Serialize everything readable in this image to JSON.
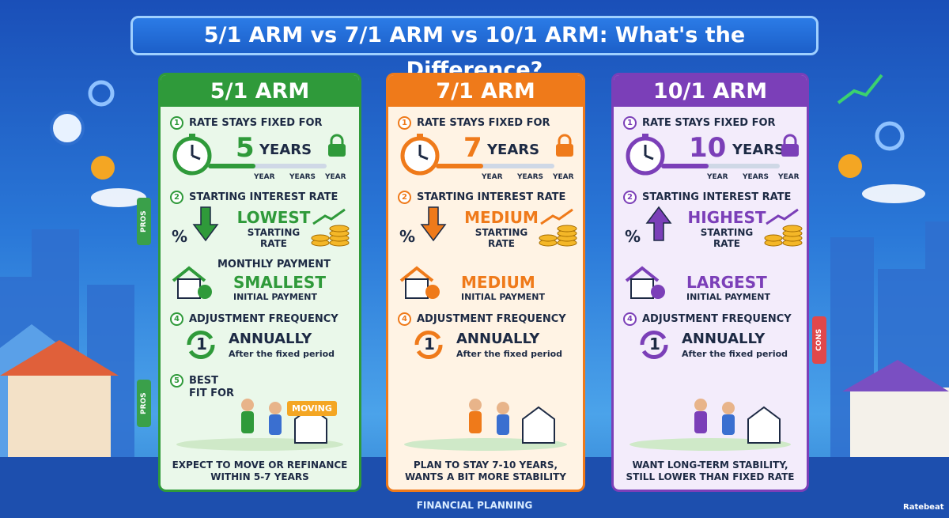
{
  "title": "5/1 ARM vs 7/1 ARM vs 10/1 ARM: What's the Difference?",
  "side_labels": {
    "pros_top": "PROS",
    "pros_bottom": "PROS",
    "cons": "CONS"
  },
  "columns": [
    {
      "name": "5/1 ARM",
      "color": "#2f9a3a",
      "tint": "#eaf8ea",
      "fixed": {
        "step": "1",
        "label": "RATE STAYS FIXED FOR",
        "number": "5",
        "unit": "YEARS",
        "scale": [
          "YEAR",
          "YEARS",
          "YEAR"
        ]
      },
      "rate": {
        "step": "2",
        "label": "STARTING INTEREST RATE",
        "symbol": "%",
        "level": "LOWEST",
        "caption": "STARTING RATE",
        "direction": "down"
      },
      "payment": {
        "label": "MONTHLY PAYMENT",
        "level": "SMALLEST",
        "caption": "INITIAL PAYMENT"
      },
      "adjust": {
        "step": "4",
        "label": "ADJUSTMENT FREQUENCY",
        "icon": "1",
        "level": "ANNUALLY",
        "caption": "After the fixed period"
      },
      "fit": {
        "step": "5",
        "label": "BEST FIT FOR",
        "sign": "MOVING",
        "summary": "EXPECT TO MOVE OR REFINANCE WITHIN 5-7 YEARS"
      }
    },
    {
      "name": "7/1 ARM",
      "color": "#ef7a1a",
      "tint": "#fff3e4",
      "fixed": {
        "step": "1",
        "label": "RATE STAYS FIXED FOR",
        "number": "7",
        "unit": "YEARS",
        "scale": [
          "YEAR",
          "YEARS",
          "YEAR"
        ]
      },
      "rate": {
        "step": "2",
        "label": "STARTING INTEREST RATE",
        "symbol": "%",
        "level": "MEDIUM",
        "caption": "STARTING RATE",
        "direction": "down"
      },
      "payment": {
        "level": "MEDIUM",
        "caption": "INITIAL PAYMENT"
      },
      "adjust": {
        "step": "4",
        "label": "ADJUSTMENT FREQUENCY",
        "icon": "1",
        "level": "ANNUALLY",
        "caption": "After the fixed period"
      },
      "fit": {
        "summary": "PLAN TO STAY 7-10 YEARS, WANTS A BIT MORE STABILITY"
      }
    },
    {
      "name": "10/1 ARM",
      "color": "#7b3fb8",
      "tint": "#f3ecfb",
      "fixed": {
        "step": "1",
        "label": "RATE STAYS FIXED FOR",
        "number": "10",
        "unit": "YEARS",
        "scale": [
          "YEAR",
          "YEARS",
          "YEAR"
        ]
      },
      "rate": {
        "step": "2",
        "label": "STARTING INTEREST RATE",
        "symbol": "%",
        "level": "HIGHEST",
        "caption": "STARTING RATE",
        "direction": "up"
      },
      "payment": {
        "level": "LARGEST",
        "caption": "INITIAL PAYMENT"
      },
      "adjust": {
        "step": "4",
        "label": "ADJUSTMENT FREQUENCY",
        "icon": "1",
        "level": "ANNUALLY",
        "caption": "After the fixed period"
      },
      "fit": {
        "summary": "WANT LONG-TERM STABILITY, STILL LOWER THAN FIXED RATE"
      }
    }
  ],
  "footer": "FINANCIAL PLANNING",
  "brand": "Ratebeat"
}
